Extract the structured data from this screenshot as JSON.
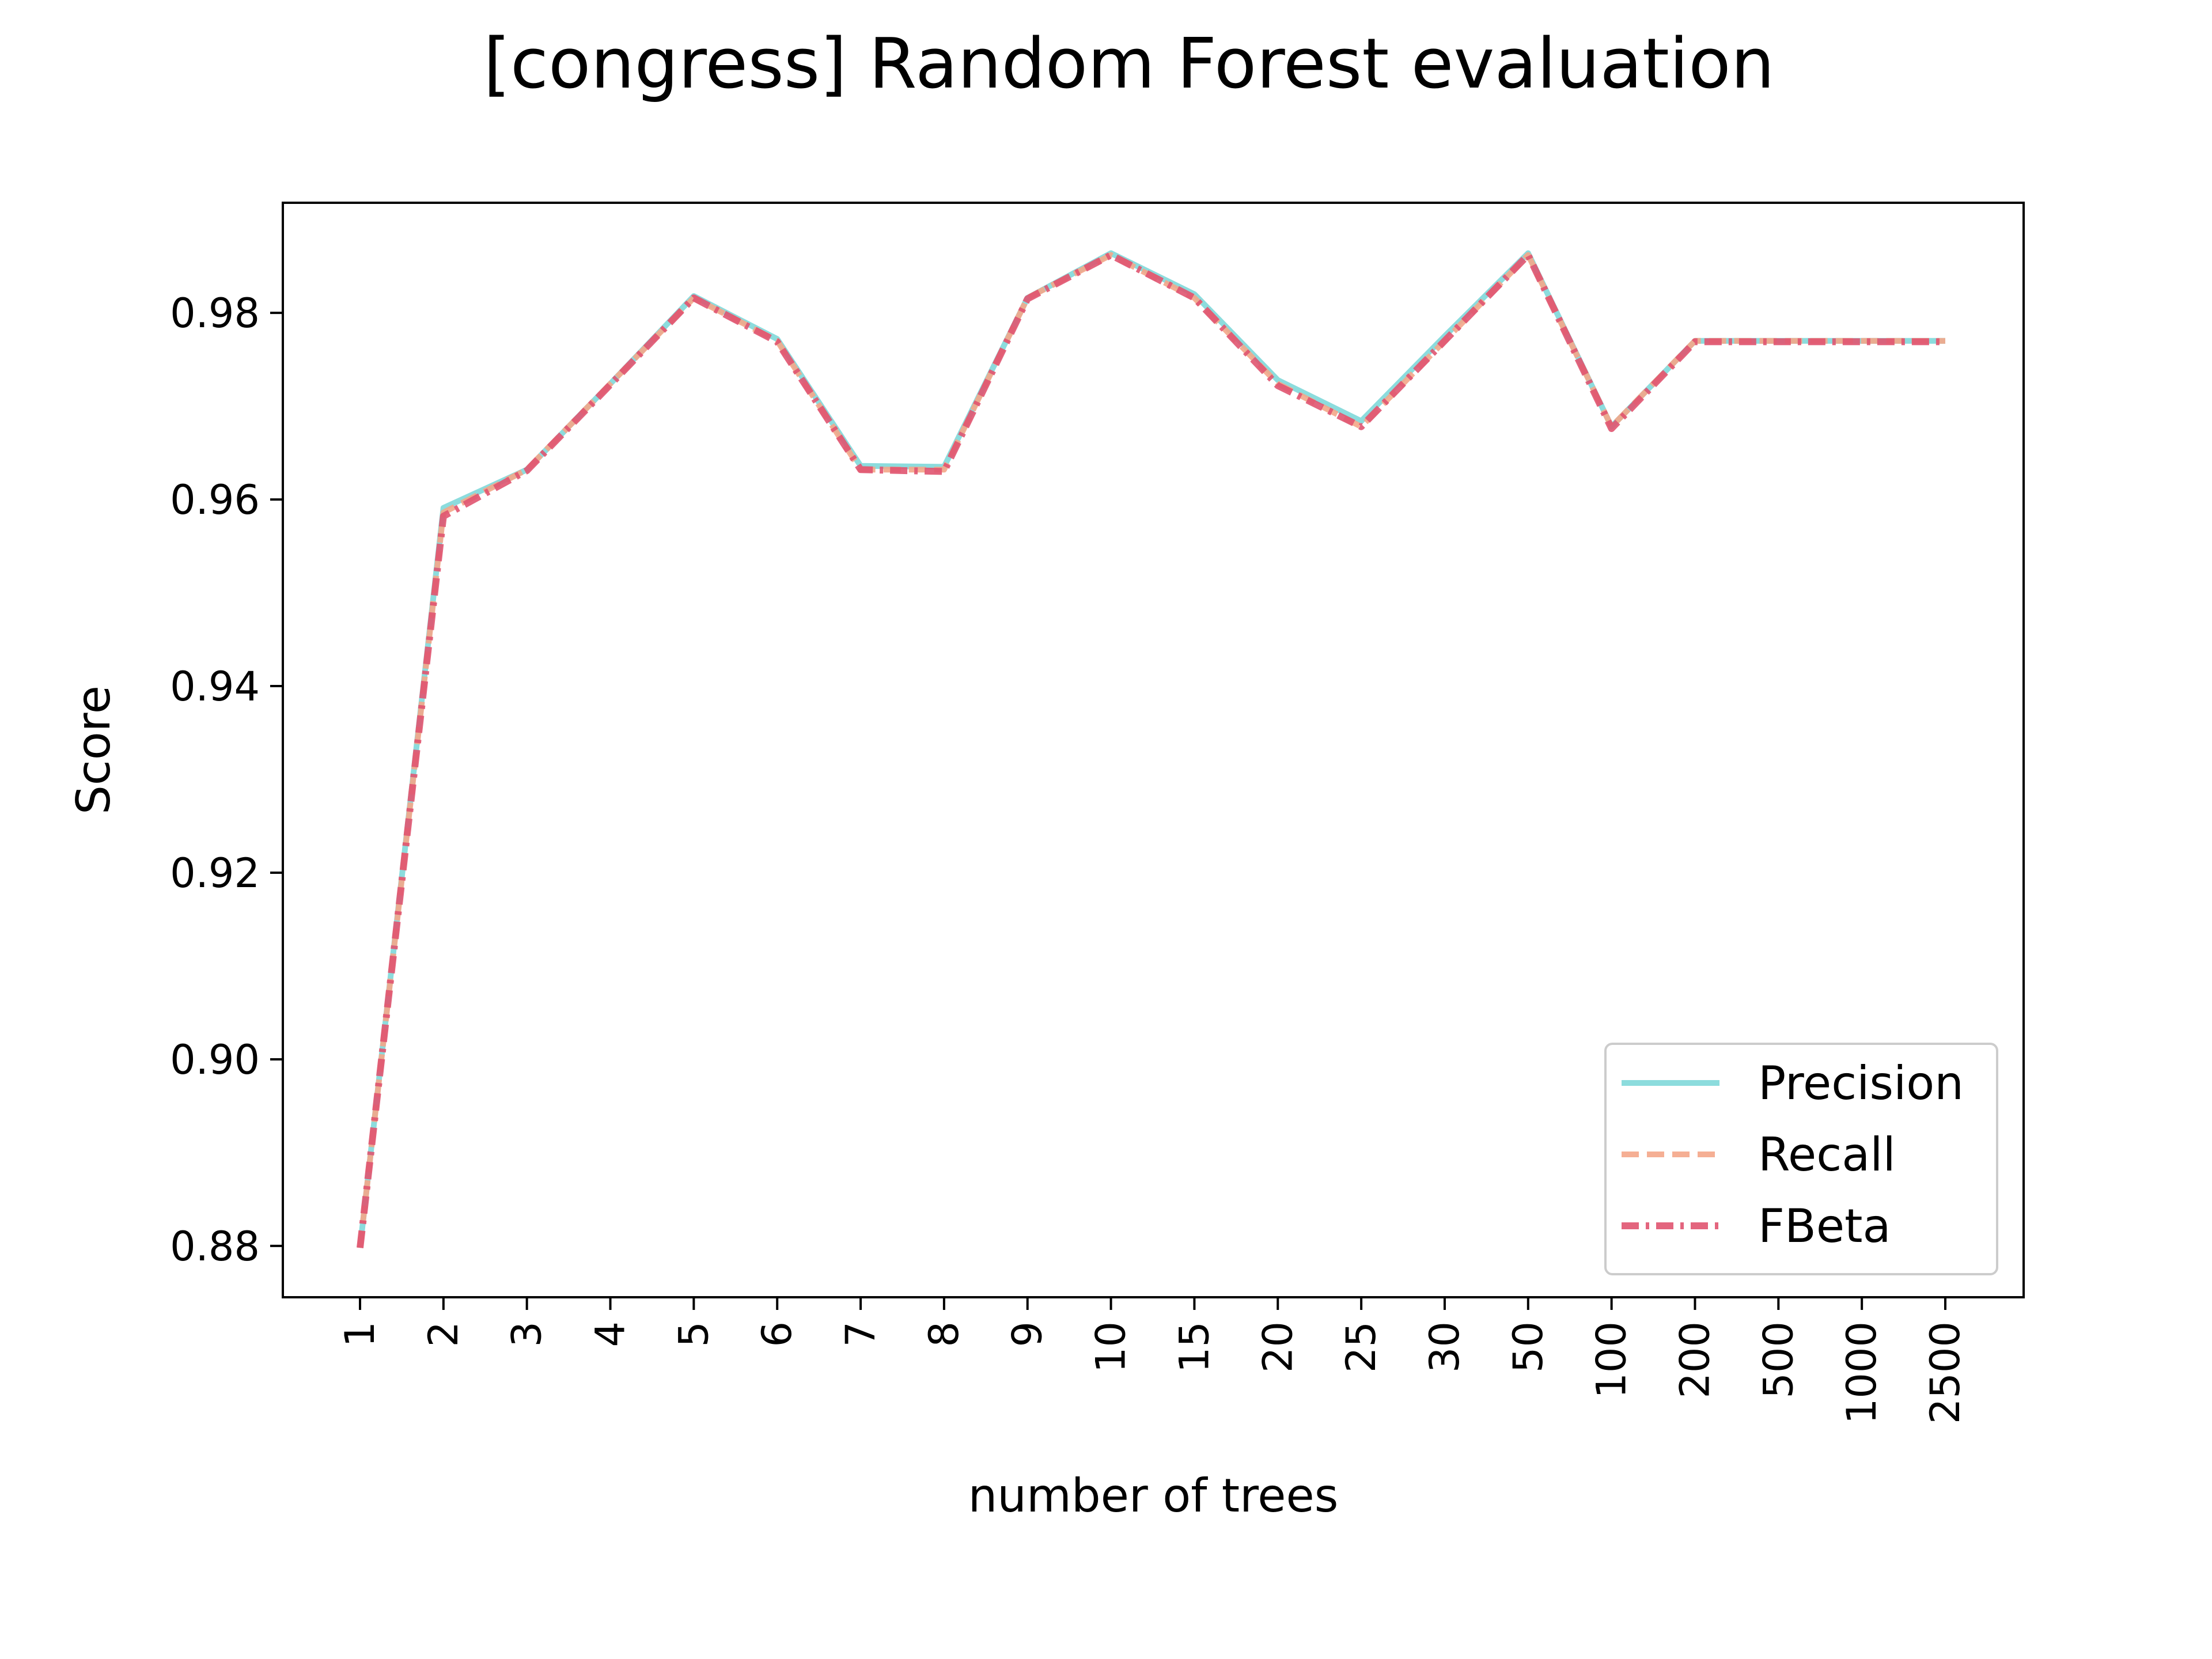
{
  "chart_data": {
    "type": "line",
    "title": "[congress] Random Forest evaluation",
    "xlabel": "number of trees",
    "ylabel": "Score",
    "categories": [
      "1",
      "2",
      "3",
      "4",
      "5",
      "6",
      "7",
      "8",
      "9",
      "10",
      "15",
      "20",
      "25",
      "30",
      "50",
      "100",
      "200",
      "500",
      "1000",
      "2500"
    ],
    "ylim": [
      0.8745,
      0.9918
    ],
    "yticks": [
      0.88,
      0.9,
      0.92,
      0.94,
      0.96,
      0.98
    ],
    "ytick_labels": [
      "0.88",
      "0.90",
      "0.92",
      "0.94",
      "0.96",
      "0.98"
    ],
    "grid": false,
    "legend_position": "lower-right",
    "series": [
      {
        "name": "Precision",
        "color": "#7fd8d9",
        "dash": "solid",
        "values": [
          0.8798,
          0.9591,
          0.9632,
          0.9724,
          0.9818,
          0.9772,
          0.9636,
          0.9635,
          0.9816,
          0.9864,
          0.982,
          0.9728,
          0.9684,
          0.9775,
          0.9864,
          0.9678,
          0.977,
          0.977,
          0.977,
          0.977
        ]
      },
      {
        "name": "Recall",
        "color": "#f4a688",
        "dash": "dashed",
        "values": [
          0.8798,
          0.9586,
          0.9632,
          0.9724,
          0.9816,
          0.977,
          0.9632,
          0.9632,
          0.9816,
          0.9862,
          0.9816,
          0.9724,
          0.9678,
          0.977,
          0.9862,
          0.9678,
          0.977,
          0.977,
          0.977,
          0.977
        ]
      },
      {
        "name": "FBeta",
        "color": "#e05470",
        "dash": "dashdot",
        "values": [
          0.8798,
          0.9582,
          0.9631,
          0.9723,
          0.9816,
          0.9769,
          0.9632,
          0.963,
          0.9815,
          0.9862,
          0.9816,
          0.9722,
          0.9678,
          0.977,
          0.9862,
          0.9676,
          0.9769,
          0.9769,
          0.9769,
          0.9769
        ]
      }
    ]
  }
}
